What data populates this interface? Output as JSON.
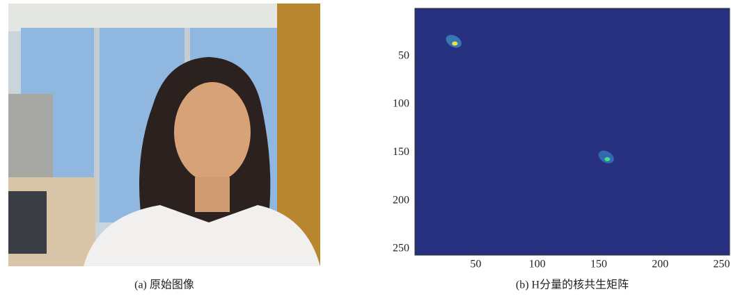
{
  "figure": {
    "captions": [
      "(a) 原始图像",
      "(b) H分量的核共生矩阵"
    ]
  },
  "chart_data": {
    "type": "heatmap",
    "background": "#27317f",
    "xlim": [
      0.5,
      256.5
    ],
    "ylim": [
      0.5,
      256.5
    ],
    "y_reversed": true,
    "xticks": [
      50,
      100,
      150,
      200,
      250
    ],
    "yticks": [
      50,
      100,
      150,
      200,
      250
    ],
    "peaks": [
      {
        "x": 33,
        "y": 37,
        "color": "#f2e33a",
        "halo": "#3fa9d6"
      },
      {
        "x": 157,
        "y": 157,
        "color": "#3ee08a",
        "halo": "#3a8fd0"
      }
    ]
  }
}
